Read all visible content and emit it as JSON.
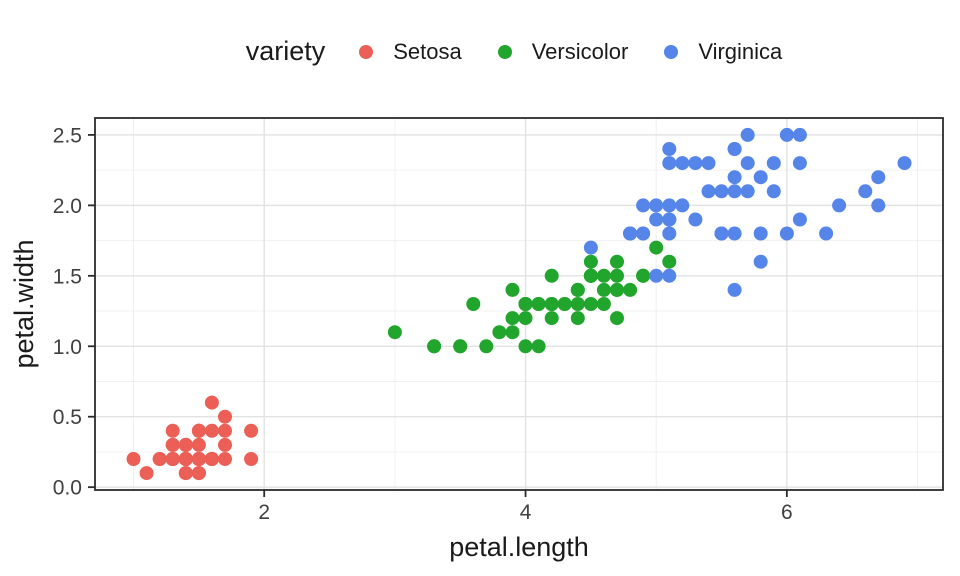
{
  "page": {
    "background": "#FFFFFF"
  },
  "chart_data": {
    "type": "scatter",
    "title": "",
    "legend_title": "variety",
    "legend_position": "top",
    "xlabel": "petal.length",
    "ylabel": "petal.width",
    "grid": true,
    "x_domain": [
      0.705,
      7.195
    ],
    "y_domain": [
      -0.02,
      2.62
    ],
    "x_major_ticks": [
      2,
      4,
      6
    ],
    "x_tick_labels": [
      "2",
      "4",
      "6"
    ],
    "x_minor_gridlines": [
      1,
      3,
      5,
      7
    ],
    "y_major_ticks": [
      0.0,
      0.5,
      1.0,
      1.5,
      2.0,
      2.5
    ],
    "y_tick_labels": [
      "0.0",
      "0.5",
      "1.0",
      "1.5",
      "2.0",
      "2.5"
    ],
    "y_minor_gridlines": [
      0.25,
      0.75,
      1.25,
      1.75,
      2.25
    ],
    "point_radius": 7,
    "panel_border_color": "#2B2B2B",
    "grid_major_color": "#E2E2E2",
    "grid_minor_color": "#F0F0F0",
    "series": [
      {
        "name": "Setosa",
        "color": "#EC5F57",
        "points": [
          [
            1.4,
            0.2
          ],
          [
            1.4,
            0.2
          ],
          [
            1.3,
            0.2
          ],
          [
            1.5,
            0.2
          ],
          [
            1.4,
            0.2
          ],
          [
            1.7,
            0.4
          ],
          [
            1.4,
            0.3
          ],
          [
            1.5,
            0.2
          ],
          [
            1.4,
            0.2
          ],
          [
            1.5,
            0.1
          ],
          [
            1.5,
            0.2
          ],
          [
            1.6,
            0.2
          ],
          [
            1.4,
            0.1
          ],
          [
            1.1,
            0.1
          ],
          [
            1.2,
            0.2
          ],
          [
            1.5,
            0.4
          ],
          [
            1.3,
            0.4
          ],
          [
            1.4,
            0.3
          ],
          [
            1.7,
            0.3
          ],
          [
            1.5,
            0.3
          ],
          [
            1.7,
            0.2
          ],
          [
            1.5,
            0.4
          ],
          [
            1.0,
            0.2
          ],
          [
            1.7,
            0.5
          ],
          [
            1.9,
            0.2
          ],
          [
            1.6,
            0.2
          ],
          [
            1.6,
            0.4
          ],
          [
            1.5,
            0.2
          ],
          [
            1.4,
            0.2
          ],
          [
            1.6,
            0.2
          ],
          [
            1.6,
            0.2
          ],
          [
            1.5,
            0.4
          ],
          [
            1.5,
            0.1
          ],
          [
            1.4,
            0.2
          ],
          [
            1.5,
            0.2
          ],
          [
            1.2,
            0.2
          ],
          [
            1.3,
            0.2
          ],
          [
            1.4,
            0.1
          ],
          [
            1.3,
            0.2
          ],
          [
            1.5,
            0.2
          ],
          [
            1.3,
            0.3
          ],
          [
            1.3,
            0.3
          ],
          [
            1.3,
            0.2
          ],
          [
            1.6,
            0.6
          ],
          [
            1.9,
            0.4
          ],
          [
            1.4,
            0.3
          ],
          [
            1.6,
            0.2
          ],
          [
            1.4,
            0.2
          ],
          [
            1.5,
            0.2
          ],
          [
            1.4,
            0.2
          ]
        ]
      },
      {
        "name": "Versicolor",
        "color": "#21A52D",
        "points": [
          [
            4.7,
            1.4
          ],
          [
            4.5,
            1.5
          ],
          [
            4.9,
            1.5
          ],
          [
            4.0,
            1.3
          ],
          [
            4.6,
            1.5
          ],
          [
            4.5,
            1.3
          ],
          [
            4.7,
            1.6
          ],
          [
            3.3,
            1.0
          ],
          [
            4.6,
            1.3
          ],
          [
            3.9,
            1.4
          ],
          [
            3.5,
            1.0
          ],
          [
            4.2,
            1.5
          ],
          [
            4.0,
            1.0
          ],
          [
            4.7,
            1.4
          ],
          [
            3.6,
            1.3
          ],
          [
            4.4,
            1.4
          ],
          [
            4.5,
            1.5
          ],
          [
            4.1,
            1.0
          ],
          [
            4.5,
            1.5
          ],
          [
            3.9,
            1.1
          ],
          [
            4.8,
            1.8
          ],
          [
            4.0,
            1.3
          ],
          [
            4.9,
            1.5
          ],
          [
            4.7,
            1.2
          ],
          [
            4.3,
            1.3
          ],
          [
            4.4,
            1.4
          ],
          [
            4.8,
            1.4
          ],
          [
            5.0,
            1.7
          ],
          [
            4.5,
            1.5
          ],
          [
            3.5,
            1.0
          ],
          [
            3.8,
            1.1
          ],
          [
            3.7,
            1.0
          ],
          [
            3.9,
            1.2
          ],
          [
            5.1,
            1.6
          ],
          [
            4.5,
            1.5
          ],
          [
            4.5,
            1.6
          ],
          [
            4.7,
            1.5
          ],
          [
            4.4,
            1.3
          ],
          [
            4.1,
            1.3
          ],
          [
            4.0,
            1.3
          ],
          [
            4.4,
            1.2
          ],
          [
            4.6,
            1.4
          ],
          [
            4.0,
            1.2
          ],
          [
            3.3,
            1.0
          ],
          [
            4.2,
            1.3
          ],
          [
            4.2,
            1.2
          ],
          [
            4.2,
            1.3
          ],
          [
            4.3,
            1.3
          ],
          [
            3.0,
            1.1
          ],
          [
            4.1,
            1.3
          ]
        ]
      },
      {
        "name": "Virginica",
        "color": "#5585E8",
        "points": [
          [
            6.0,
            2.5
          ],
          [
            5.1,
            1.9
          ],
          [
            5.9,
            2.1
          ],
          [
            5.6,
            1.8
          ],
          [
            5.8,
            2.2
          ],
          [
            6.6,
            2.1
          ],
          [
            4.5,
            1.7
          ],
          [
            6.3,
            1.8
          ],
          [
            5.8,
            1.8
          ],
          [
            6.1,
            2.5
          ],
          [
            5.1,
            2.0
          ],
          [
            5.3,
            1.9
          ],
          [
            5.5,
            2.1
          ],
          [
            5.0,
            2.0
          ],
          [
            5.1,
            2.4
          ],
          [
            5.3,
            2.3
          ],
          [
            5.5,
            1.8
          ],
          [
            6.7,
            2.2
          ],
          [
            6.9,
            2.3
          ],
          [
            5.0,
            1.5
          ],
          [
            5.7,
            2.3
          ],
          [
            4.9,
            2.0
          ],
          [
            6.7,
            2.0
          ],
          [
            4.9,
            1.8
          ],
          [
            5.7,
            2.1
          ],
          [
            6.0,
            1.8
          ],
          [
            4.8,
            1.8
          ],
          [
            4.9,
            1.8
          ],
          [
            5.6,
            2.1
          ],
          [
            5.8,
            1.6
          ],
          [
            6.1,
            1.9
          ],
          [
            6.4,
            2.0
          ],
          [
            5.6,
            2.2
          ],
          [
            5.1,
            1.5
          ],
          [
            5.6,
            1.4
          ],
          [
            6.1,
            2.3
          ],
          [
            5.6,
            2.4
          ],
          [
            5.5,
            1.8
          ],
          [
            4.8,
            1.8
          ],
          [
            5.4,
            2.1
          ],
          [
            5.6,
            2.4
          ],
          [
            5.1,
            2.3
          ],
          [
            5.1,
            1.9
          ],
          [
            5.9,
            2.3
          ],
          [
            5.7,
            2.5
          ],
          [
            5.2,
            2.3
          ],
          [
            5.0,
            1.9
          ],
          [
            5.2,
            2.0
          ],
          [
            5.4,
            2.3
          ],
          [
            5.1,
            1.8
          ]
        ]
      }
    ]
  }
}
